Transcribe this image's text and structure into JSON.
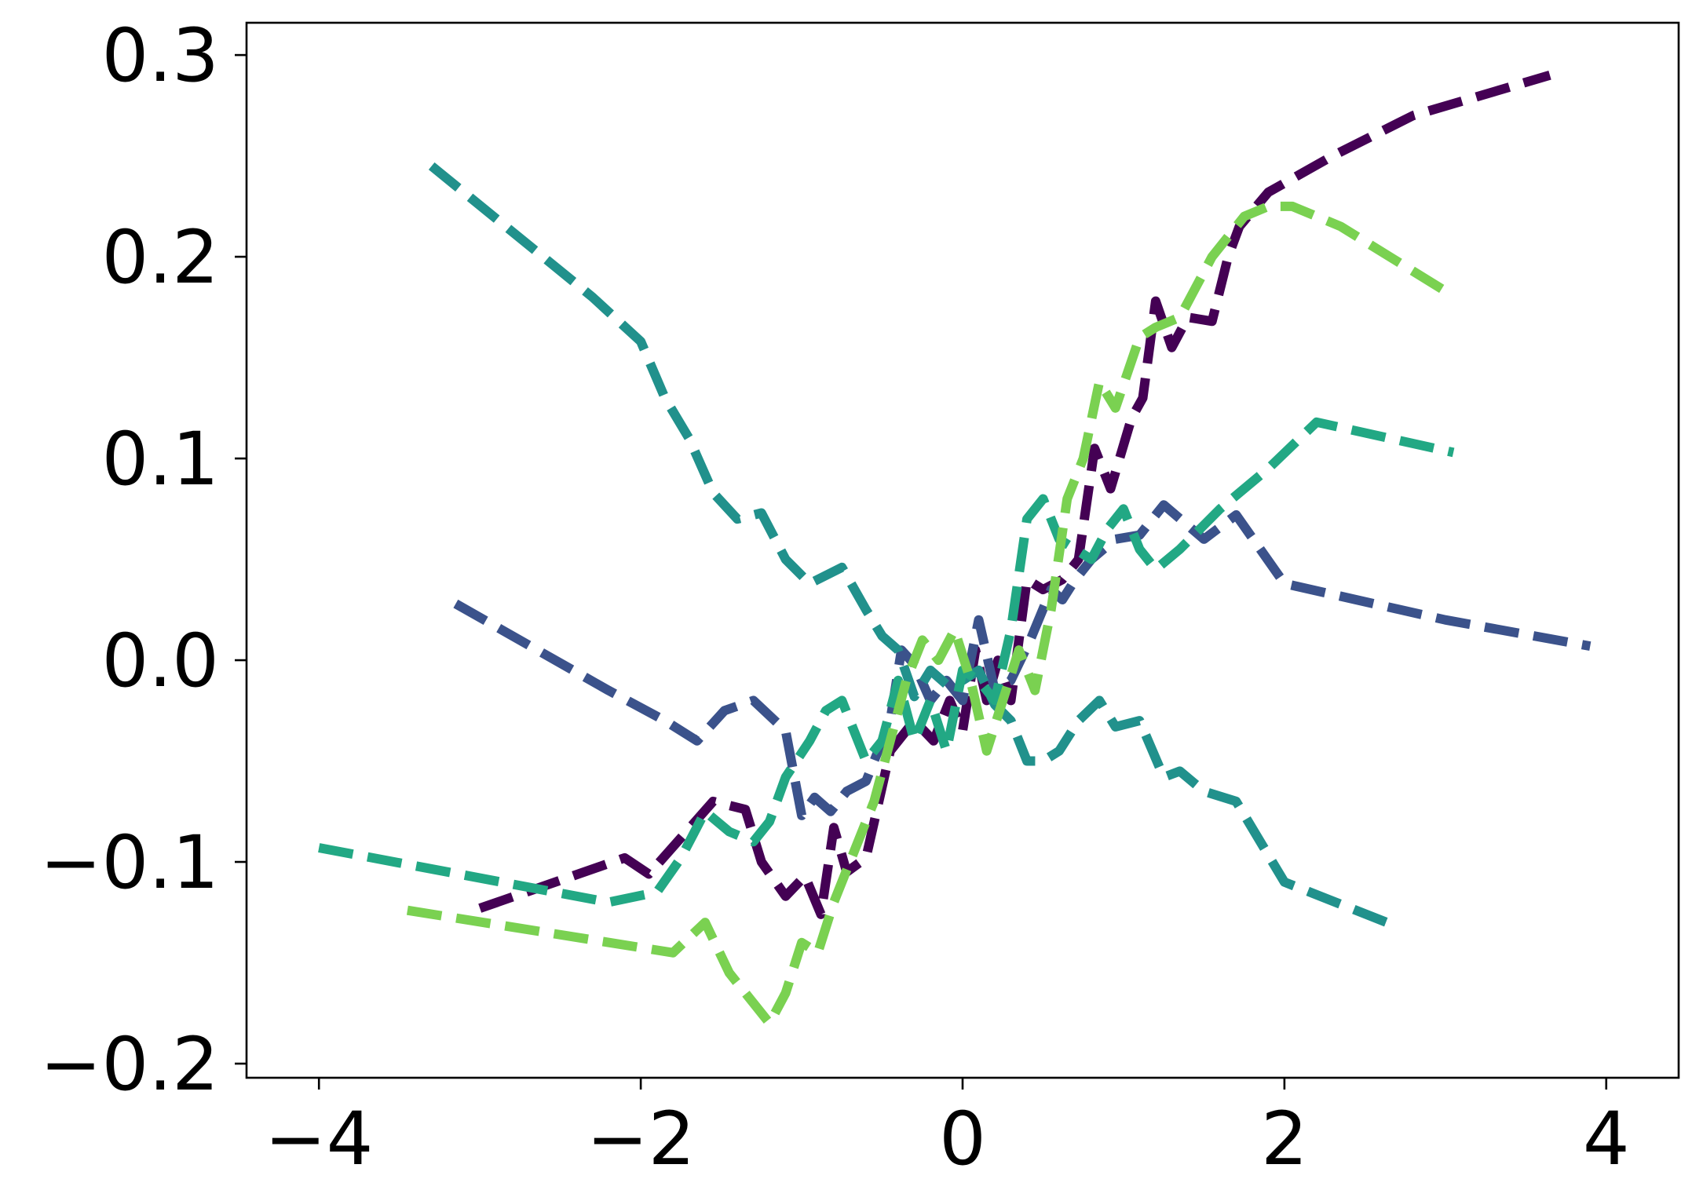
{
  "chart_data": {
    "type": "line",
    "title": "",
    "xlabel": "",
    "ylabel": "",
    "xlim": [
      -4.45,
      4.45
    ],
    "ylim": [
      -0.207,
      0.316
    ],
    "grid": false,
    "x_ticks": [
      {
        "value": -4,
        "label": "−4"
      },
      {
        "value": -2,
        "label": "−2"
      },
      {
        "value": 0,
        "label": "0"
      },
      {
        "value": 2,
        "label": "2"
      },
      {
        "value": 4,
        "label": "4"
      }
    ],
    "y_ticks": [
      {
        "value": -0.2,
        "label": "−0.2"
      },
      {
        "value": -0.1,
        "label": "−0.1"
      },
      {
        "value": 0.0,
        "label": "0.0"
      },
      {
        "value": 0.1,
        "label": "0.1"
      },
      {
        "value": 0.2,
        "label": "0.2"
      },
      {
        "value": 0.3,
        "label": "0.3"
      }
    ],
    "series": [
      {
        "color": "#440154",
        "x": [
          -3.0,
          -2.1,
          -1.95,
          -1.55,
          -1.35,
          -1.25,
          -1.1,
          -0.98,
          -0.88,
          -0.8,
          -0.72,
          -0.6,
          -0.45,
          -0.3,
          -0.18,
          -0.08,
          0.0,
          0.08,
          0.15,
          0.22,
          0.3,
          0.4,
          0.5,
          0.62,
          0.72,
          0.82,
          0.92,
          1.05,
          1.12,
          1.2,
          1.3,
          1.4,
          1.55,
          1.65,
          1.72,
          1.9,
          2.3,
          2.8,
          3.65
        ],
        "values": [
          -0.123,
          -0.098,
          -0.106,
          -0.07,
          -0.074,
          -0.1,
          -0.117,
          -0.107,
          -0.126,
          -0.083,
          -0.105,
          -0.098,
          -0.045,
          -0.03,
          -0.04,
          -0.02,
          -0.035,
          0.005,
          -0.02,
          0.0,
          -0.02,
          0.04,
          0.035,
          0.04,
          0.05,
          0.105,
          0.085,
          0.12,
          0.13,
          0.178,
          0.155,
          0.17,
          0.168,
          0.2,
          0.215,
          0.232,
          0.25,
          0.27,
          0.29
        ]
      },
      {
        "color": "#3b528b",
        "x": [
          -3.15,
          -2.2,
          -1.85,
          -1.65,
          -1.48,
          -1.3,
          -1.1,
          -1.0,
          -0.92,
          -0.82,
          -0.72,
          -0.6,
          -0.45,
          -0.38,
          -0.3,
          -0.2,
          -0.1,
          0.0,
          0.1,
          0.2,
          0.3,
          0.42,
          0.55,
          0.62,
          0.7,
          0.8,
          0.95,
          1.1,
          1.25,
          1.5,
          1.7,
          2.0,
          3.0,
          3.9
        ],
        "values": [
          0.028,
          -0.015,
          -0.03,
          -0.04,
          -0.025,
          -0.02,
          -0.035,
          -0.077,
          -0.068,
          -0.075,
          -0.065,
          -0.06,
          -0.03,
          0.005,
          -0.002,
          -0.02,
          -0.01,
          -0.02,
          0.02,
          -0.015,
          -0.01,
          0.01,
          0.035,
          0.03,
          0.04,
          0.05,
          0.06,
          0.062,
          0.077,
          0.06,
          0.072,
          0.038,
          0.02,
          0.007
        ]
      },
      {
        "color": "#21918c",
        "x": [
          -3.3,
          -2.3,
          -2.0,
          -1.85,
          -1.7,
          -1.55,
          -1.4,
          -1.25,
          -1.1,
          -0.95,
          -0.75,
          -0.6,
          -0.5,
          -0.4,
          -0.3,
          -0.2,
          -0.1,
          0.0,
          0.1,
          0.2,
          0.3,
          0.4,
          0.5,
          0.6,
          0.72,
          0.85,
          0.95,
          1.1,
          1.25,
          1.35,
          1.5,
          1.7,
          2.0,
          2.7
        ],
        "values": [
          0.245,
          0.18,
          0.158,
          0.13,
          0.11,
          0.083,
          0.07,
          0.073,
          0.05,
          0.038,
          0.046,
          0.025,
          0.012,
          0.005,
          -0.018,
          -0.005,
          -0.012,
          -0.01,
          -0.005,
          -0.022,
          -0.03,
          -0.05,
          -0.05,
          -0.045,
          -0.03,
          -0.02,
          -0.033,
          -0.03,
          -0.058,
          -0.055,
          -0.065,
          -0.07,
          -0.11,
          -0.132
        ]
      },
      {
        "color": "#22a884",
        "x": [
          -4.0,
          -2.2,
          -1.9,
          -1.75,
          -1.6,
          -1.45,
          -1.3,
          -1.2,
          -1.1,
          -0.95,
          -0.85,
          -0.75,
          -0.6,
          -0.5,
          -0.4,
          -0.3,
          -0.2,
          -0.1,
          0.0,
          0.1,
          0.2,
          0.3,
          0.4,
          0.5,
          0.6,
          0.7,
          0.8,
          0.9,
          1.0,
          1.1,
          1.2,
          1.35,
          1.6,
          1.9,
          2.2,
          3.05
        ],
        "values": [
          -0.093,
          -0.12,
          -0.115,
          -0.098,
          -0.075,
          -0.085,
          -0.09,
          -0.08,
          -0.058,
          -0.04,
          -0.025,
          -0.02,
          -0.05,
          -0.04,
          -0.01,
          -0.04,
          -0.02,
          -0.045,
          -0.005,
          -0.01,
          -0.02,
          0.015,
          0.07,
          0.08,
          0.06,
          0.055,
          0.05,
          0.065,
          0.075,
          0.055,
          0.045,
          0.055,
          0.075,
          0.095,
          0.118,
          0.103
        ]
      },
      {
        "color": "#7ad151",
        "x": [
          -3.45,
          -1.8,
          -1.6,
          -1.45,
          -1.3,
          -1.2,
          -1.1,
          -1.0,
          -0.9,
          -0.8,
          -0.7,
          -0.55,
          -0.45,
          -0.35,
          -0.25,
          -0.15,
          -0.05,
          0.05,
          0.15,
          0.25,
          0.35,
          0.45,
          0.55,
          0.65,
          0.75,
          0.85,
          0.95,
          1.1,
          1.2,
          1.35,
          1.55,
          1.75,
          1.9,
          2.05,
          2.35,
          3.0
        ],
        "values": [
          -0.124,
          -0.145,
          -0.13,
          -0.155,
          -0.17,
          -0.18,
          -0.165,
          -0.14,
          -0.145,
          -0.12,
          -0.1,
          -0.07,
          -0.04,
          -0.01,
          0.01,
          0.0,
          0.015,
          -0.01,
          -0.045,
          -0.02,
          0.005,
          -0.015,
          0.025,
          0.08,
          0.1,
          0.138,
          0.125,
          0.16,
          0.165,
          0.17,
          0.2,
          0.22,
          0.225,
          0.225,
          0.215,
          0.183
        ]
      }
    ]
  }
}
